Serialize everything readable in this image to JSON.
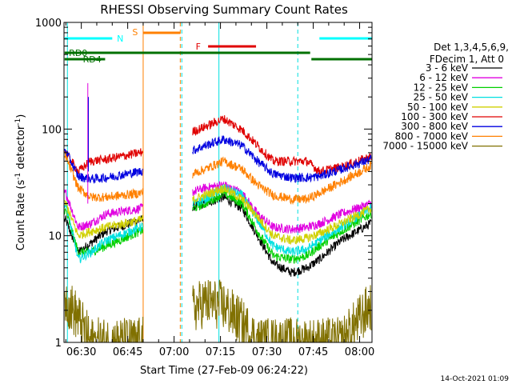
{
  "chart_data": {
    "type": "line",
    "title": "RHESSI Observing Summary Count Rates",
    "xlabel": "Start Time (27-Feb-09 06:24:22)",
    "ylabel_parts": [
      "Count Rate (s",
      "-1",
      " detector",
      "-1",
      ")"
    ],
    "yscale": "log",
    "ylim": [
      1,
      1000
    ],
    "xlim_minutes": [
      384.4,
      484.0
    ],
    "x_ticks": [
      {
        "label": "06:30",
        "m": 390
      },
      {
        "label": "06:45",
        "m": 405
      },
      {
        "label": "07:00",
        "m": 420
      },
      {
        "label": "07:15",
        "m": 435
      },
      {
        "label": "07:30",
        "m": 450
      },
      {
        "label": "07:45",
        "m": 465
      },
      {
        "label": "08:00",
        "m": 480
      }
    ],
    "y_ticks": [
      {
        "label": "1",
        "v": 1
      },
      {
        "label": "10",
        "v": 10
      },
      {
        "label": "100",
        "v": 100
      },
      {
        "label": "1000",
        "v": 1000
      }
    ],
    "legend": {
      "placement": "right",
      "header": [
        "Det 1,3,4,5,6,9,",
        "FDecim 1, Att 0"
      ],
      "entries": [
        {
          "label": "3 - 6 keV",
          "color": "#000000"
        },
        {
          "label": "6 - 12 keV",
          "color": "#e000e0"
        },
        {
          "label": "12 - 25 keV",
          "color": "#00d000"
        },
        {
          "label": "25 - 50 keV",
          "color": "#00e0e0"
        },
        {
          "label": "50 - 100 keV",
          "color": "#d0d000"
        },
        {
          "label": "100 - 300 keV",
          "color": "#e00000"
        },
        {
          "label": "300 - 800 keV",
          "color": "#0000e0"
        },
        {
          "label": "800 - 7000 keV",
          "color": "#ff8000"
        },
        {
          "label": "7000 - 15000 keV",
          "color": "#807000"
        }
      ]
    },
    "night_intervals": [
      [
        385.5,
        422.5
      ],
      [
        434.5,
        460.0
      ]
    ],
    "series": [
      {
        "name": "3 - 6 keV",
        "color": "#000000",
        "shape": [
          14,
          7,
          8.5,
          11,
          14,
          20,
          23,
          18,
          10,
          5.5,
          4.5,
          5,
          6,
          9,
          13
        ]
      },
      {
        "name": "6 - 12 keV",
        "color": "#e000e0",
        "shape": [
          25,
          12,
          13,
          16,
          18,
          28,
          30,
          25,
          16,
          12,
          11.5,
          12,
          13,
          16,
          20
        ]
      },
      {
        "name": "12 - 25 keV",
        "color": "#00d000",
        "shape": [
          17,
          7,
          7,
          8,
          11,
          20,
          25,
          20,
          11,
          6.5,
          6,
          6.5,
          8,
          11,
          16
        ]
      },
      {
        "name": "25 - 50 keV",
        "color": "#00e0e0",
        "shape": [
          20,
          6,
          7,
          9,
          12,
          22,
          28,
          24,
          14,
          8,
          7,
          7.5,
          9,
          12,
          18
        ]
      },
      {
        "name": "50 - 100 keV",
        "color": "#d0d000",
        "shape": [
          20,
          10,
          11,
          12,
          14,
          24,
          28,
          22,
          15,
          10,
          9,
          9.5,
          10.5,
          13,
          18
        ]
      },
      {
        "name": "100 - 300 keV",
        "color": "#e00000",
        "shape": [
          60,
          40,
          50,
          52,
          60,
          105,
          125,
          98,
          70,
          50,
          50,
          50,
          40,
          44,
          55
        ]
      },
      {
        "name": "300 - 800 keV",
        "color": "#0000e0",
        "shape": [
          62,
          36,
          34,
          35,
          40,
          70,
          80,
          70,
          50,
          38,
          35,
          35,
          36,
          42,
          52
        ]
      },
      {
        "name": "800 - 7000 keV",
        "color": "#ff8000",
        "shape": [
          55,
          28,
          23,
          23,
          25,
          42,
          50,
          42,
          30,
          24,
          22,
          22,
          25,
          32,
          45
        ]
      },
      {
        "name": "7000 - 15000 keV",
        "color": "#807000",
        "shape": [
          2.5,
          1.7,
          1,
          1,
          1,
          2.4,
          2.2,
          1.5,
          1,
          1,
          1,
          1,
          1,
          1,
          2.2
        ]
      }
    ],
    "annotations": [
      {
        "label": "N",
        "color": "#00ffff"
      },
      {
        "label": "S",
        "color": "#ff8000"
      },
      {
        "label": "F",
        "color": "#e00000"
      },
      {
        "label": "RD0",
        "color": "#007000"
      },
      {
        "label": "RD4",
        "color": "#007000"
      }
    ],
    "timestamp": "14-Oct-2021 01:09"
  }
}
